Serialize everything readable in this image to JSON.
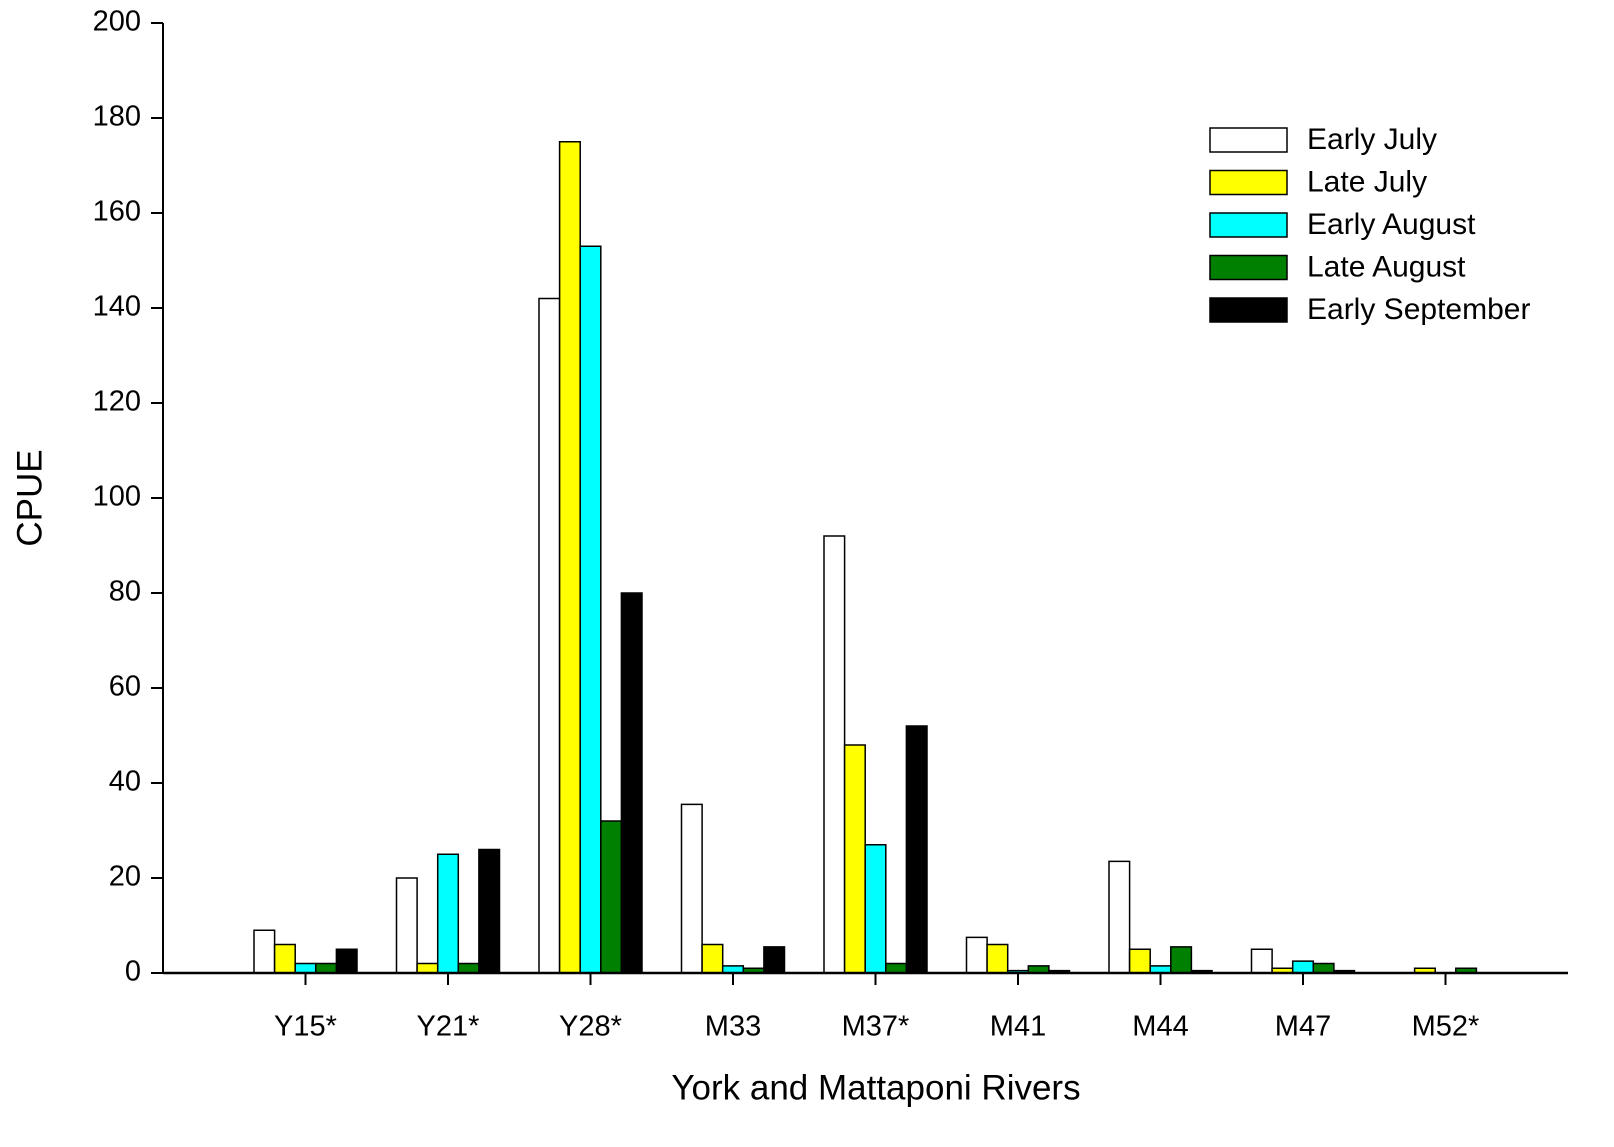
{
  "chart_data": {
    "type": "bar",
    "x_label": "York and Mattaponi Rivers",
    "y_label": "CPUE",
    "categories": [
      "Y15*",
      "Y21*",
      "Y28*",
      "M33",
      "M37*",
      "M41",
      "M44",
      "M47",
      "M52*"
    ],
    "series": [
      {
        "name": "Early July",
        "color": "#ffffff",
        "values": [
          9,
          20,
          142,
          35.5,
          92,
          7.5,
          23.5,
          5,
          0
        ]
      },
      {
        "name": "Late July",
        "color": "#ffff00",
        "values": [
          6,
          2,
          175,
          6,
          48,
          6,
          5,
          1,
          1
        ]
      },
      {
        "name": "Early August",
        "color": "#00ffff",
        "values": [
          2,
          25,
          153,
          1.5,
          27,
          0.5,
          1.5,
          2.5,
          0
        ]
      },
      {
        "name": "Late August",
        "color": "#008000",
        "values": [
          2,
          2,
          32,
          1,
          2,
          1.5,
          5.5,
          2,
          1
        ]
      },
      {
        "name": "Early September",
        "color": "#000000",
        "values": [
          5,
          26,
          80,
          5.5,
          52,
          0.5,
          0.5,
          0.5,
          0
        ]
      }
    ],
    "ylim": [
      0,
      200
    ],
    "yticks": [
      0,
      20,
      40,
      60,
      80,
      100,
      120,
      140,
      160,
      180,
      200
    ],
    "legend": "upper right",
    "grid": false
  }
}
